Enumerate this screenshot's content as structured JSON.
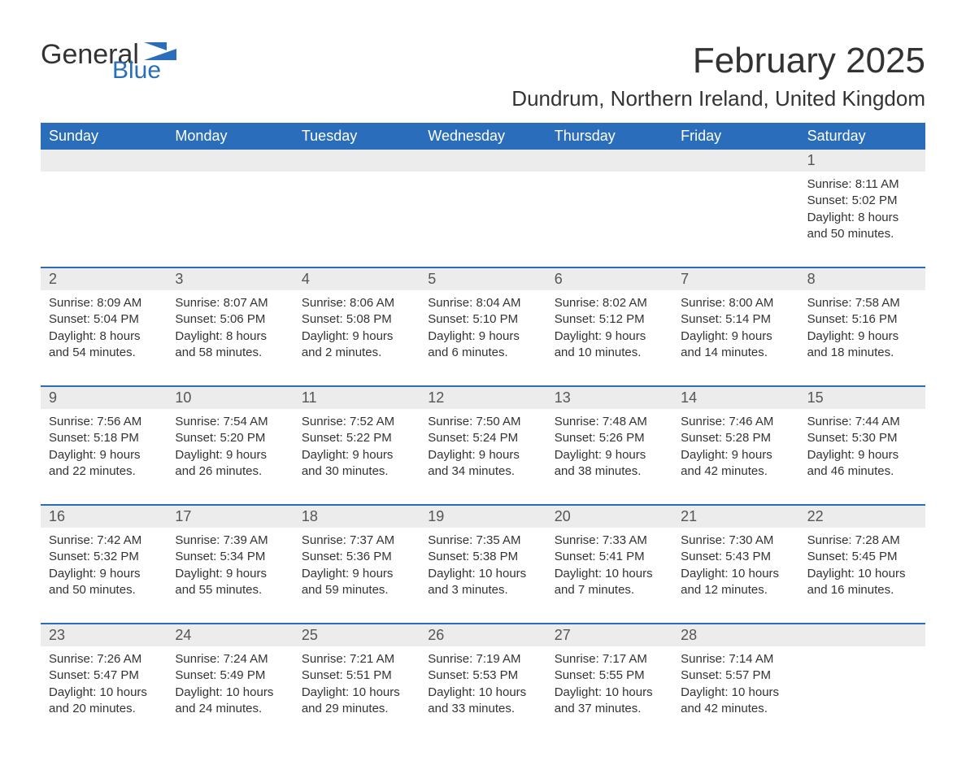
{
  "logo": {
    "text_general": "General",
    "text_blue": "Blue"
  },
  "title": "February 2025",
  "location": "Dundrum, Northern Ireland, United Kingdom",
  "colors": {
    "header_bg": "#2a6ebb",
    "header_text": "#ffffff",
    "daynum_bg": "#ececec",
    "week_border": "#2a6ebb",
    "body_text": "#333333",
    "logo_blue": "#2a6ebb",
    "background": "#ffffff"
  },
  "typography": {
    "title_fontsize": 44,
    "location_fontsize": 26,
    "dayheader_fontsize": 18,
    "daynum_fontsize": 18,
    "cell_fontsize": 15,
    "font_family": "Segoe UI, Arial, Helvetica, sans-serif"
  },
  "day_headers": [
    "Sunday",
    "Monday",
    "Tuesday",
    "Wednesday",
    "Thursday",
    "Friday",
    "Saturday"
  ],
  "weeks": [
    {
      "numbers": [
        "",
        "",
        "",
        "",
        "",
        "",
        "1"
      ],
      "cells": [
        {
          "sunrise": "",
          "sunset": "",
          "daylight": ""
        },
        {
          "sunrise": "",
          "sunset": "",
          "daylight": ""
        },
        {
          "sunrise": "",
          "sunset": "",
          "daylight": ""
        },
        {
          "sunrise": "",
          "sunset": "",
          "daylight": ""
        },
        {
          "sunrise": "",
          "sunset": "",
          "daylight": ""
        },
        {
          "sunrise": "",
          "sunset": "",
          "daylight": ""
        },
        {
          "sunrise": "Sunrise: 8:11 AM",
          "sunset": "Sunset: 5:02 PM",
          "daylight": "Daylight: 8 hours and 50 minutes."
        }
      ]
    },
    {
      "numbers": [
        "2",
        "3",
        "4",
        "5",
        "6",
        "7",
        "8"
      ],
      "cells": [
        {
          "sunrise": "Sunrise: 8:09 AM",
          "sunset": "Sunset: 5:04 PM",
          "daylight": "Daylight: 8 hours and 54 minutes."
        },
        {
          "sunrise": "Sunrise: 8:07 AM",
          "sunset": "Sunset: 5:06 PM",
          "daylight": "Daylight: 8 hours and 58 minutes."
        },
        {
          "sunrise": "Sunrise: 8:06 AM",
          "sunset": "Sunset: 5:08 PM",
          "daylight": "Daylight: 9 hours and 2 minutes."
        },
        {
          "sunrise": "Sunrise: 8:04 AM",
          "sunset": "Sunset: 5:10 PM",
          "daylight": "Daylight: 9 hours and 6 minutes."
        },
        {
          "sunrise": "Sunrise: 8:02 AM",
          "sunset": "Sunset: 5:12 PM",
          "daylight": "Daylight: 9 hours and 10 minutes."
        },
        {
          "sunrise": "Sunrise: 8:00 AM",
          "sunset": "Sunset: 5:14 PM",
          "daylight": "Daylight: 9 hours and 14 minutes."
        },
        {
          "sunrise": "Sunrise: 7:58 AM",
          "sunset": "Sunset: 5:16 PM",
          "daylight": "Daylight: 9 hours and 18 minutes."
        }
      ]
    },
    {
      "numbers": [
        "9",
        "10",
        "11",
        "12",
        "13",
        "14",
        "15"
      ],
      "cells": [
        {
          "sunrise": "Sunrise: 7:56 AM",
          "sunset": "Sunset: 5:18 PM",
          "daylight": "Daylight: 9 hours and 22 minutes."
        },
        {
          "sunrise": "Sunrise: 7:54 AM",
          "sunset": "Sunset: 5:20 PM",
          "daylight": "Daylight: 9 hours and 26 minutes."
        },
        {
          "sunrise": "Sunrise: 7:52 AM",
          "sunset": "Sunset: 5:22 PM",
          "daylight": "Daylight: 9 hours and 30 minutes."
        },
        {
          "sunrise": "Sunrise: 7:50 AM",
          "sunset": "Sunset: 5:24 PM",
          "daylight": "Daylight: 9 hours and 34 minutes."
        },
        {
          "sunrise": "Sunrise: 7:48 AM",
          "sunset": "Sunset: 5:26 PM",
          "daylight": "Daylight: 9 hours and 38 minutes."
        },
        {
          "sunrise": "Sunrise: 7:46 AM",
          "sunset": "Sunset: 5:28 PM",
          "daylight": "Daylight: 9 hours and 42 minutes."
        },
        {
          "sunrise": "Sunrise: 7:44 AM",
          "sunset": "Sunset: 5:30 PM",
          "daylight": "Daylight: 9 hours and 46 minutes."
        }
      ]
    },
    {
      "numbers": [
        "16",
        "17",
        "18",
        "19",
        "20",
        "21",
        "22"
      ],
      "cells": [
        {
          "sunrise": "Sunrise: 7:42 AM",
          "sunset": "Sunset: 5:32 PM",
          "daylight": "Daylight: 9 hours and 50 minutes."
        },
        {
          "sunrise": "Sunrise: 7:39 AM",
          "sunset": "Sunset: 5:34 PM",
          "daylight": "Daylight: 9 hours and 55 minutes."
        },
        {
          "sunrise": "Sunrise: 7:37 AM",
          "sunset": "Sunset: 5:36 PM",
          "daylight": "Daylight: 9 hours and 59 minutes."
        },
        {
          "sunrise": "Sunrise: 7:35 AM",
          "sunset": "Sunset: 5:38 PM",
          "daylight": "Daylight: 10 hours and 3 minutes."
        },
        {
          "sunrise": "Sunrise: 7:33 AM",
          "sunset": "Sunset: 5:41 PM",
          "daylight": "Daylight: 10 hours and 7 minutes."
        },
        {
          "sunrise": "Sunrise: 7:30 AM",
          "sunset": "Sunset: 5:43 PM",
          "daylight": "Daylight: 10 hours and 12 minutes."
        },
        {
          "sunrise": "Sunrise: 7:28 AM",
          "sunset": "Sunset: 5:45 PM",
          "daylight": "Daylight: 10 hours and 16 minutes."
        }
      ]
    },
    {
      "numbers": [
        "23",
        "24",
        "25",
        "26",
        "27",
        "28",
        ""
      ],
      "cells": [
        {
          "sunrise": "Sunrise: 7:26 AM",
          "sunset": "Sunset: 5:47 PM",
          "daylight": "Daylight: 10 hours and 20 minutes."
        },
        {
          "sunrise": "Sunrise: 7:24 AM",
          "sunset": "Sunset: 5:49 PM",
          "daylight": "Daylight: 10 hours and 24 minutes."
        },
        {
          "sunrise": "Sunrise: 7:21 AM",
          "sunset": "Sunset: 5:51 PM",
          "daylight": "Daylight: 10 hours and 29 minutes."
        },
        {
          "sunrise": "Sunrise: 7:19 AM",
          "sunset": "Sunset: 5:53 PM",
          "daylight": "Daylight: 10 hours and 33 minutes."
        },
        {
          "sunrise": "Sunrise: 7:17 AM",
          "sunset": "Sunset: 5:55 PM",
          "daylight": "Daylight: 10 hours and 37 minutes."
        },
        {
          "sunrise": "Sunrise: 7:14 AM",
          "sunset": "Sunset: 5:57 PM",
          "daylight": "Daylight: 10 hours and 42 minutes."
        },
        {
          "sunrise": "",
          "sunset": "",
          "daylight": ""
        }
      ]
    }
  ]
}
